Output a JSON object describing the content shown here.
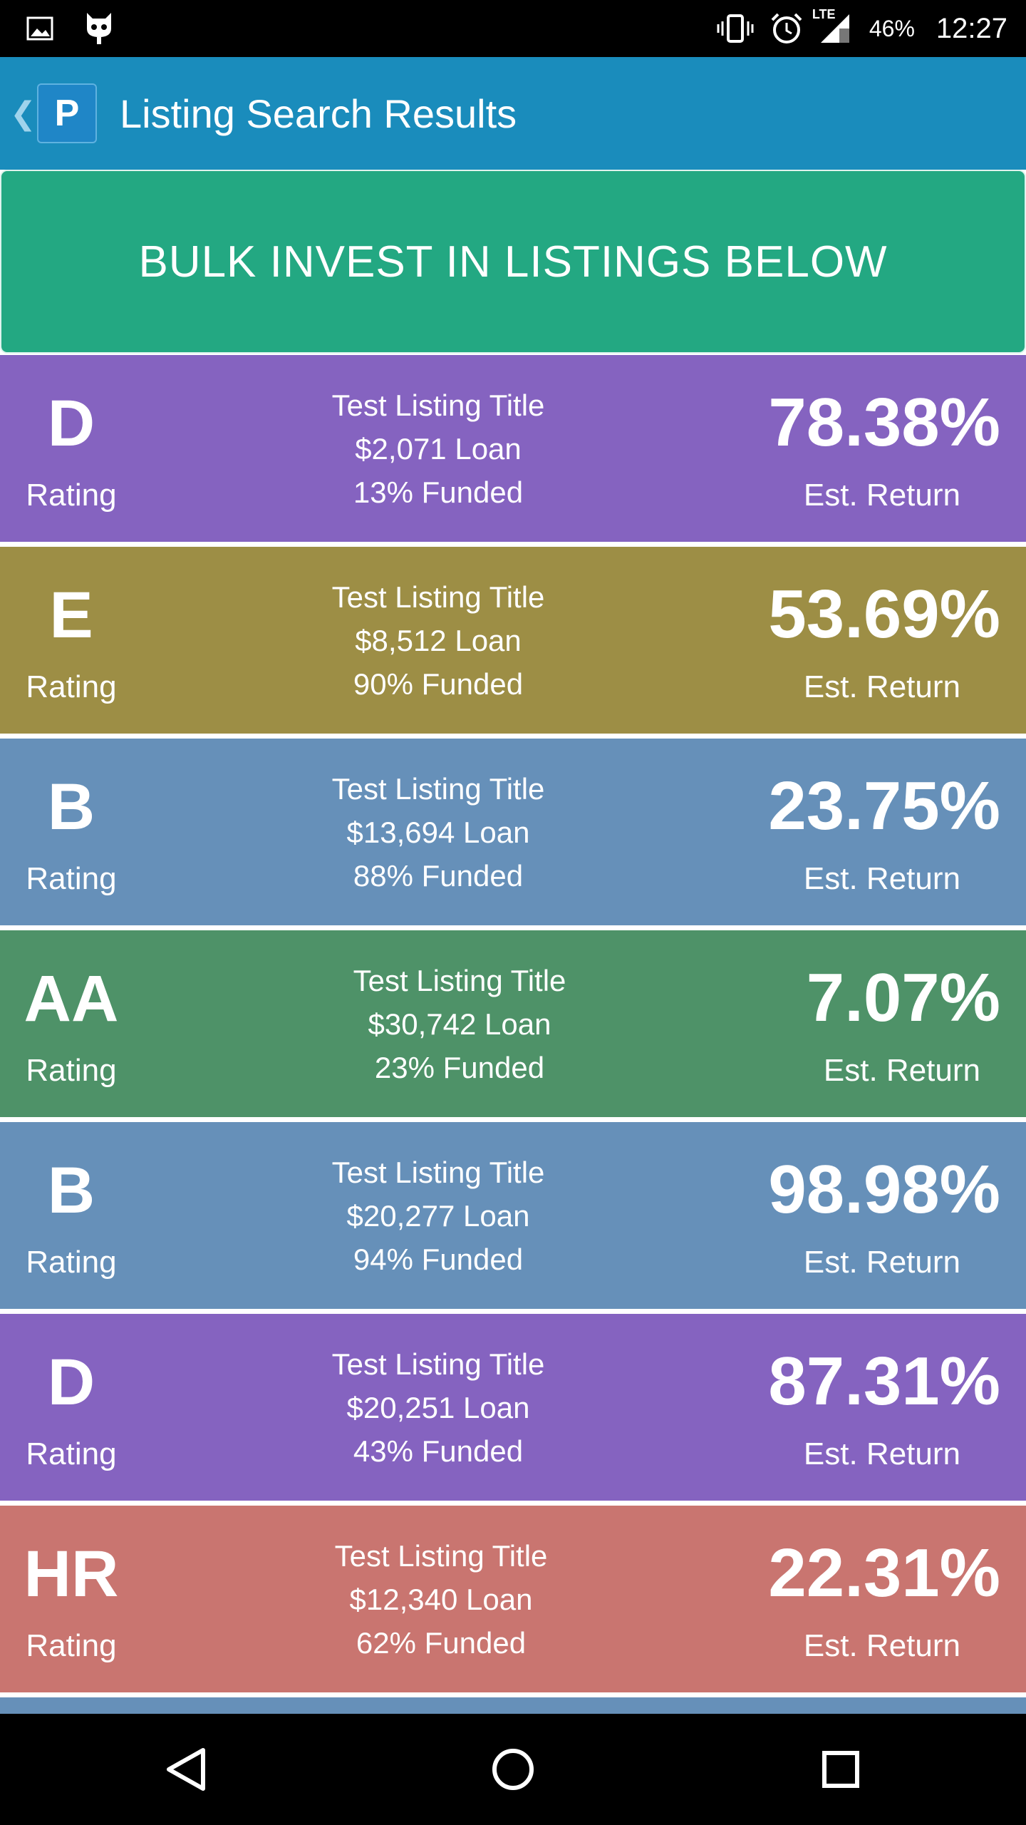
{
  "status_bar": {
    "battery": "46%",
    "time": "12:27",
    "network": "LTE",
    "icons": [
      "image-icon",
      "robot-icon",
      "vibrate-icon",
      "alarm-icon",
      "signal-icon",
      "battery-icon"
    ]
  },
  "app_bar": {
    "back_glyph": "❮",
    "logo_letter": "P",
    "title": "Listing Search Results",
    "color": "#1a8cbc"
  },
  "bulk_button": {
    "label": "BULK INVEST IN LISTINGS BELOW",
    "color": "#23a882"
  },
  "listings": [
    {
      "grade": "D",
      "rating_label": "Rating",
      "title": "Test Listing Title",
      "loan": "$2,071 Loan",
      "funded": "13% Funded",
      "return": "78.38%",
      "return_label": "Est. Return",
      "color": "#8563c0"
    },
    {
      "grade": "E",
      "rating_label": "Rating",
      "title": "Test Listing Title",
      "loan": "$8,512 Loan",
      "funded": "90% Funded",
      "return": "53.69%",
      "return_label": "Est. Return",
      "color": "#9d8e45"
    },
    {
      "grade": "B",
      "rating_label": "Rating",
      "title": "Test Listing Title",
      "loan": "$13,694 Loan",
      "funded": "88% Funded",
      "return": "23.75%",
      "return_label": "Est. Return",
      "color": "#6690b9"
    },
    {
      "grade": "AA",
      "rating_label": "Rating",
      "title": "Test Listing Title",
      "loan": "$30,742 Loan",
      "funded": "23% Funded",
      "return": "7.07%",
      "return_label": "Est. Return",
      "color": "#4e9268"
    },
    {
      "grade": "B",
      "rating_label": "Rating",
      "title": "Test Listing Title",
      "loan": "$20,277 Loan",
      "funded": "94% Funded",
      "return": "98.98%",
      "return_label": "Est. Return",
      "color": "#6690b9"
    },
    {
      "grade": "D",
      "rating_label": "Rating",
      "title": "Test Listing Title",
      "loan": "$20,251 Loan",
      "funded": "43% Funded",
      "return": "87.31%",
      "return_label": "Est. Return",
      "color": "#8563c0"
    },
    {
      "grade": "HR",
      "rating_label": "Rating",
      "title": "Test Listing Title",
      "loan": "$12,340 Loan",
      "funded": "62% Funded",
      "return": "22.31%",
      "return_label": "Est. Return",
      "color": "#c97570"
    },
    {
      "grade": "",
      "rating_label": "",
      "title": "",
      "loan": "",
      "funded": "",
      "return": "",
      "return_label": "",
      "color": "#6690b9"
    }
  ],
  "nav_bar": {
    "icons": [
      "back-triangle-icon",
      "home-circle-icon",
      "recents-square-icon"
    ]
  }
}
